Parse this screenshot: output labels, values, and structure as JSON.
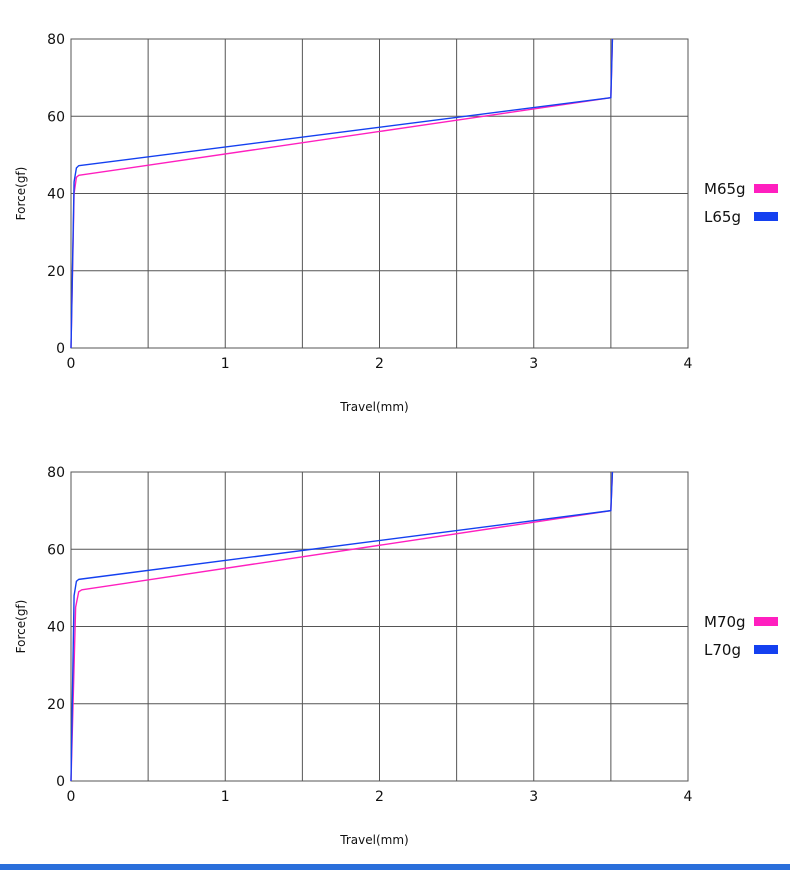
{
  "chart_data": [
    {
      "type": "line",
      "xlabel": "Travel(mm)",
      "ylabel": "Force(gf)",
      "xlim": [
        0,
        4
      ],
      "ylim": [
        0,
        80
      ],
      "xticks": [
        "0",
        "1",
        "2",
        "3",
        "4"
      ],
      "yticks": [
        "0",
        "20",
        "40",
        "60",
        "80"
      ],
      "grid": true,
      "legend_position": "right",
      "series": [
        {
          "name": "M65g",
          "color": "#ff1fbf",
          "x": [
            0,
            0.02,
            0.035,
            0.05,
            3.5,
            3.5,
            3.51
          ],
          "y": [
            0,
            40,
            44.2,
            44.7,
            64.8,
            65,
            80
          ]
        },
        {
          "name": "L65g",
          "color": "#1440f0",
          "x": [
            0,
            0.02,
            0.035,
            0.05,
            3.5,
            3.5,
            3.51
          ],
          "y": [
            0,
            43,
            46.6,
            47.2,
            64.8,
            65,
            80
          ]
        }
      ]
    },
    {
      "type": "line",
      "xlabel": "Travel(mm)",
      "ylabel": "Force(gf)",
      "xlim": [
        0,
        4
      ],
      "ylim": [
        0,
        80
      ],
      "xticks": [
        "0",
        "1",
        "2",
        "3",
        "4"
      ],
      "yticks": [
        "0",
        "20",
        "40",
        "60",
        "80"
      ],
      "grid": true,
      "legend_position": "right",
      "series": [
        {
          "name": "M70g",
          "color": "#ff1fbf",
          "x": [
            0,
            0.03,
            0.05,
            0.07,
            3.5,
            3.5,
            3.51
          ],
          "y": [
            0,
            45,
            49,
            49.5,
            70.0,
            70.2,
            80
          ]
        },
        {
          "name": "L70g",
          "color": "#1440f0",
          "x": [
            0,
            0.02,
            0.035,
            0.05,
            3.5,
            3.5,
            3.51
          ],
          "y": [
            0,
            48,
            51.7,
            52.2,
            70.0,
            70.2,
            80
          ]
        }
      ]
    }
  ]
}
